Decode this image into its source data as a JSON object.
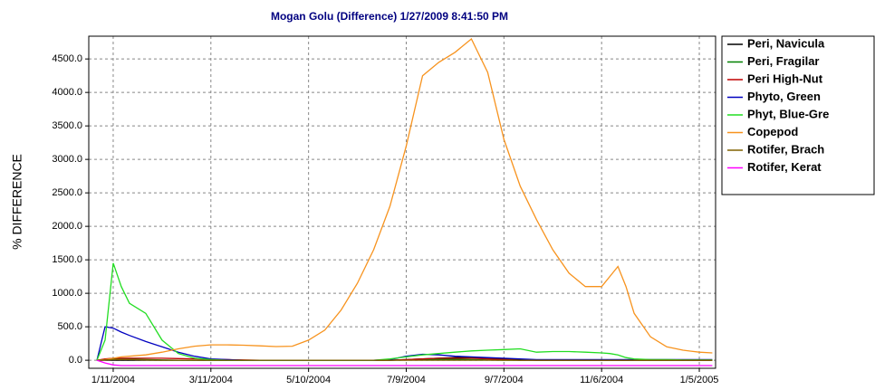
{
  "chart_data": {
    "type": "line",
    "title": "Mogan Golu (Difference)  1/27/2009 8:41:50 PM",
    "y_label": "% DIFFERENCE",
    "x": [
      "2004-01-01",
      "2004-01-06",
      "2004-01-11",
      "2004-01-16",
      "2004-01-21",
      "2004-01-31",
      "2004-02-10",
      "2004-02-20",
      "2004-03-01",
      "2004-03-11",
      "2004-03-21",
      "2004-03-31",
      "2004-04-10",
      "2004-04-20",
      "2004-04-30",
      "2004-05-10",
      "2004-05-20",
      "2004-05-30",
      "2004-06-09",
      "2004-06-19",
      "2004-06-29",
      "2004-07-09",
      "2004-07-19",
      "2004-07-29",
      "2004-08-08",
      "2004-08-18",
      "2004-08-28",
      "2004-09-07",
      "2004-09-17",
      "2004-09-27",
      "2004-10-07",
      "2004-10-17",
      "2004-10-27",
      "2004-11-06",
      "2004-11-11",
      "2004-11-16",
      "2004-11-21",
      "2004-11-26",
      "2004-12-06",
      "2004-12-16",
      "2004-12-26",
      "2005-01-05",
      "2005-01-13"
    ],
    "xlim": [
      "2003-12-27",
      "2005-01-15"
    ],
    "xticks": [
      {
        "value": "2004-01-11",
        "label": "1/11/2004"
      },
      {
        "value": "2004-03-11",
        "label": "3/11/2004"
      },
      {
        "value": "2004-05-10",
        "label": "5/10/2004"
      },
      {
        "value": "2004-07-09",
        "label": "7/9/2004"
      },
      {
        "value": "2004-09-07",
        "label": "9/7/2004"
      },
      {
        "value": "2004-11-06",
        "label": "11/6/2004"
      },
      {
        "value": "2005-01-05",
        "label": "1/5/2005"
      }
    ],
    "ylim": [
      -120,
      4840
    ],
    "yticks": [
      {
        "value": 0,
        "label": "0.0"
      },
      {
        "value": 500,
        "label": "500.0"
      },
      {
        "value": 1000,
        "label": "1000.0"
      },
      {
        "value": 1500,
        "label": "1500.0"
      },
      {
        "value": 2000,
        "label": "2000.0"
      },
      {
        "value": 2500,
        "label": "2500.0"
      },
      {
        "value": 3000,
        "label": "3000.0"
      },
      {
        "value": 3500,
        "label": "3500.0"
      },
      {
        "value": 4000,
        "label": "4000.0"
      },
      {
        "value": 4500,
        "label": "4500.0"
      }
    ],
    "grid": true,
    "legend": "right",
    "series": [
      {
        "name": "Peri, Navicula",
        "color": "#000000",
        "values": [
          0,
          0,
          0,
          0,
          0,
          0,
          0,
          0,
          0,
          0,
          0,
          0,
          0,
          0,
          0,
          0,
          0,
          0,
          0,
          0,
          0,
          10,
          20,
          30,
          40,
          40,
          30,
          20,
          10,
          0,
          0,
          0,
          0,
          0,
          0,
          0,
          0,
          0,
          0,
          0,
          0,
          0,
          0
        ]
      },
      {
        "name": "Peri, Fragilar",
        "color": "#008000",
        "values": [
          0,
          10,
          20,
          20,
          15,
          10,
          5,
          0,
          0,
          0,
          0,
          0,
          0,
          0,
          0,
          0,
          0,
          0,
          0,
          0,
          0,
          5,
          10,
          15,
          15,
          10,
          5,
          0,
          0,
          0,
          0,
          0,
          0,
          0,
          0,
          0,
          0,
          0,
          0,
          0,
          0,
          0,
          0
        ]
      },
      {
        "name": "Peri High-Nut",
        "color": "#c00000",
        "values": [
          0,
          20,
          30,
          30,
          30,
          30,
          30,
          25,
          20,
          15,
          10,
          5,
          0,
          0,
          0,
          0,
          0,
          0,
          0,
          0,
          0,
          10,
          20,
          30,
          30,
          30,
          20,
          10,
          0,
          0,
          0,
          0,
          0,
          0,
          0,
          0,
          0,
          0,
          0,
          0,
          0,
          0,
          0
        ]
      },
      {
        "name": "Phyto, Green",
        "color": "#0000c0",
        "values": [
          0,
          500,
          480,
          420,
          370,
          280,
          200,
          120,
          60,
          20,
          10,
          0,
          0,
          0,
          0,
          0,
          0,
          0,
          0,
          0,
          10,
          60,
          90,
          80,
          60,
          50,
          40,
          30,
          20,
          10,
          10,
          10,
          10,
          10,
          10,
          10,
          10,
          10,
          10,
          10,
          10,
          10,
          10
        ]
      },
      {
        "name": "Phyt, Blue-Gre",
        "color": "#22dd22",
        "values": [
          0,
          300,
          1450,
          1100,
          850,
          700,
          300,
          100,
          30,
          10,
          0,
          0,
          0,
          0,
          0,
          0,
          0,
          0,
          0,
          0,
          20,
          50,
          80,
          100,
          120,
          140,
          150,
          160,
          170,
          120,
          130,
          130,
          120,
          110,
          100,
          80,
          40,
          20,
          10,
          10,
          5,
          5,
          5
        ]
      },
      {
        "name": "Copepod",
        "color": "#f7931e",
        "values": [
          0,
          10,
          30,
          50,
          60,
          80,
          120,
          170,
          210,
          230,
          230,
          225,
          215,
          205,
          210,
          300,
          450,
          750,
          1150,
          1650,
          2300,
          3200,
          4250,
          4450,
          4600,
          4800,
          4300,
          3300,
          2600,
          2100,
          1650,
          1300,
          1100,
          1100,
          1250,
          1400,
          1100,
          700,
          350,
          200,
          150,
          120,
          110
        ]
      },
      {
        "name": "Rotifer, Brach",
        "color": "#806000",
        "values": [
          0,
          5,
          10,
          10,
          10,
          5,
          0,
          0,
          0,
          0,
          0,
          0,
          0,
          0,
          0,
          0,
          0,
          0,
          0,
          0,
          0,
          0,
          0,
          0,
          0,
          0,
          0,
          0,
          0,
          0,
          0,
          0,
          0,
          0,
          0,
          0,
          0,
          0,
          0,
          0,
          0,
          0,
          0
        ]
      },
      {
        "name": "Rotifer, Kerat",
        "color": "#ff00ff",
        "values": [
          0,
          -40,
          -70,
          -80,
          -80,
          -80,
          -80,
          -80,
          -80,
          -80,
          -80,
          -80,
          -80,
          -80,
          -80,
          -80,
          -80,
          -80,
          -80,
          -80,
          -80,
          -80,
          -80,
          -80,
          -80,
          -80,
          -80,
          -80,
          -80,
          -80,
          -80,
          -80,
          -80,
          -80,
          -80,
          -80,
          -80,
          -80,
          -80,
          -80,
          -80,
          -80,
          -80
        ]
      }
    ]
  }
}
